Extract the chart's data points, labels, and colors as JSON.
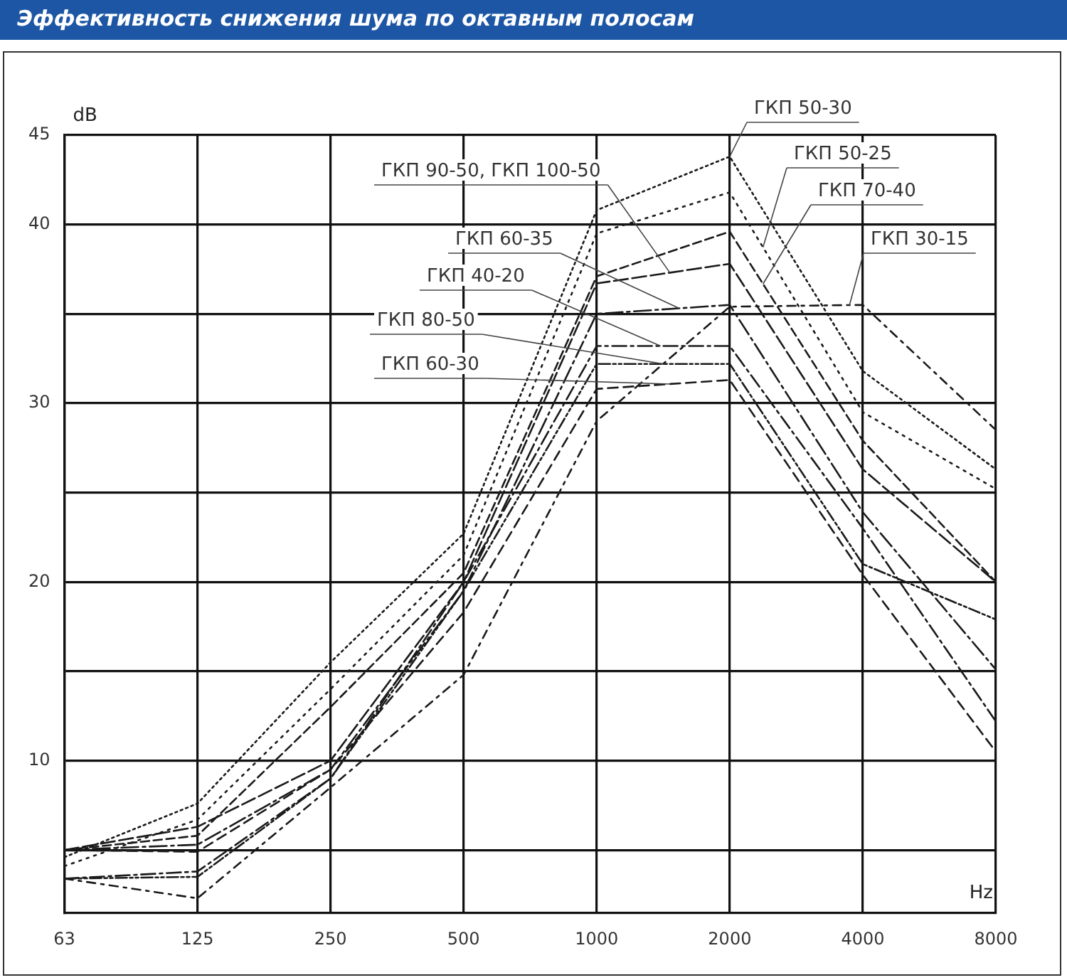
{
  "chart_data": {
    "type": "line",
    "title": "Эффективность снижения шума по октавным полосам",
    "xlabel": "Hz",
    "ylabel": "dB",
    "categories": [
      "63",
      "125",
      "250",
      "500",
      "1000",
      "2000",
      "4000",
      "8000"
    ],
    "ylim": [
      1.5,
      45
    ],
    "yticks": [
      {
        "value": 5,
        "label": null
      },
      10,
      {
        "value": 15,
        "label": null
      },
      20,
      {
        "value": 25,
        "label": null
      },
      30,
      {
        "value": 35,
        "label": null
      },
      40,
      45
    ],
    "grid": true,
    "legend": false,
    "series": [
      {
        "name": "ГКП 50-30",
        "color": "#1a1a1a",
        "line_style": "dotted",
        "values": [
          4.6,
          7.6,
          15.5,
          22.7,
          40.8,
          43.8,
          31.8,
          26.3
        ]
      },
      {
        "name": "ГКП 50-25",
        "color": "#1a1a1a",
        "line_style": "dotted",
        "values": [
          4.1,
          6.7,
          14,
          21.5,
          39.5,
          41.8,
          29.5,
          25.2
        ]
      },
      {
        "name": "ГКП 70-40",
        "color": "#1a1a1a",
        "line_style": "dashed",
        "values": [
          5,
          5.8,
          13,
          20.5,
          37.1,
          39.6,
          27.9,
          20
        ]
      },
      {
        "name": "ГКП 90-50, ГКП 100-50",
        "color": "#1a1a1a",
        "line_style": "dashed",
        "values": [
          5,
          6.3,
          10,
          20,
          36.7,
          37.8,
          26.3,
          20
        ]
      },
      {
        "name": "ГКП 60-35",
        "color": "#1a1a1a",
        "line_style": "dashed",
        "values": [
          5,
          5.3,
          9.5,
          19.5,
          35,
          35.5,
          23.9,
          15.1
        ]
      },
      {
        "name": "ГКП 40-20",
        "color": "#1a1a1a",
        "line_style": "dashed",
        "values": [
          3.4,
          3.8,
          9,
          20,
          33.2,
          33.2,
          23,
          12.2
        ]
      },
      {
        "name": "ГКП 80-50",
        "color": "#1a1a1a",
        "line_style": "dashed",
        "values": [
          3.4,
          3.5,
          9,
          19.5,
          32.2,
          32.2,
          21,
          17.9
        ]
      },
      {
        "name": "ГКП 60-30",
        "color": "#1a1a1a",
        "line_style": "dashed",
        "values": [
          5,
          4.9,
          9.5,
          18.3,
          30.8,
          31.3,
          20.4,
          10.5
        ]
      },
      {
        "name": "ГКП 30-15",
        "color": "#1a1a1a",
        "line_style": "dashed",
        "values": [
          3.4,
          2.3,
          8.5,
          14.8,
          29,
          35.4,
          35.5,
          28.5
        ]
      }
    ]
  }
}
